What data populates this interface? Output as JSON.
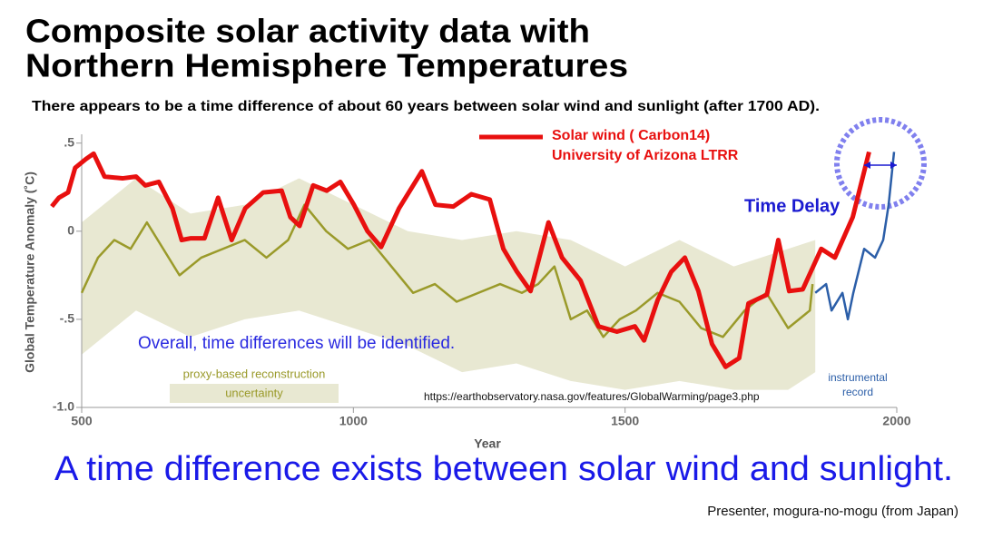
{
  "chart_data": {
    "type": "line",
    "title_lines": [
      "Composite solar activity data with",
      "Northern Hemisphere Temperatures"
    ],
    "subtitle": "There appears to be a time difference of about 60 years between solar wind and sunlight (after 1700 AD).",
    "xlabel": "Year",
    "ylabel": "Global Temperature Anomaly (˚C)",
    "xlim": [
      500,
      2000
    ],
    "xticks": [
      500,
      1000,
      1500,
      2000
    ],
    "ylim": [
      -1.0,
      0.55
    ],
    "yticks": [
      {
        "value": 0.5,
        "label": ".5"
      },
      0,
      {
        "value": -0.5,
        "label": "-.5"
      },
      {
        "value": -1.0,
        "label": "-1.0"
      }
    ],
    "band": {
      "name": "uncertainty",
      "color": "#e8e8d2",
      "x": [
        500,
        600,
        700,
        800,
        900,
        1000,
        1100,
        1200,
        1300,
        1400,
        1500,
        1600,
        1700,
        1800,
        1850
      ],
      "upper": [
        0.05,
        0.3,
        0.1,
        0.15,
        0.3,
        0.15,
        0.0,
        -0.05,
        0.0,
        -0.05,
        -0.2,
        -0.05,
        -0.2,
        -0.1,
        -0.05
      ],
      "lower": [
        -0.7,
        -0.45,
        -0.6,
        -0.5,
        -0.45,
        -0.55,
        -0.65,
        -0.8,
        -0.75,
        -0.85,
        -0.9,
        -0.85,
        -0.9,
        -0.9,
        -0.8
      ]
    },
    "series": [
      {
        "name": "proxy-based reconstruction",
        "color": "#9a9a2a",
        "width": 2.5,
        "x": [
          500,
          530,
          560,
          590,
          620,
          640,
          680,
          720,
          760,
          800,
          840,
          880,
          910,
          950,
          990,
          1030,
          1070,
          1110,
          1150,
          1190,
          1230,
          1270,
          1310,
          1340,
          1370,
          1400,
          1430,
          1460,
          1490,
          1520,
          1560,
          1600,
          1640,
          1680,
          1720,
          1760,
          1800,
          1840,
          1845
        ],
        "values": [
          -0.35,
          -0.15,
          -0.05,
          -0.1,
          0.05,
          -0.05,
          -0.25,
          -0.15,
          -0.1,
          -0.05,
          -0.15,
          -0.05,
          0.15,
          0.0,
          -0.1,
          -0.05,
          -0.2,
          -0.35,
          -0.3,
          -0.4,
          -0.35,
          -0.3,
          -0.35,
          -0.3,
          -0.2,
          -0.5,
          -0.45,
          -0.6,
          -0.5,
          -0.45,
          -0.35,
          -0.4,
          -0.55,
          -0.6,
          -0.45,
          -0.35,
          -0.55,
          -0.45,
          -0.3
        ]
      },
      {
        "name": "instrumental record",
        "color": "#2b5ea8",
        "width": 2.5,
        "x": [
          1850,
          1870,
          1880,
          1900,
          1910,
          1920,
          1940,
          1960,
          1975,
          1985,
          1995
        ],
        "values": [
          -0.35,
          -0.3,
          -0.45,
          -0.35,
          -0.5,
          -0.35,
          -0.1,
          -0.15,
          -0.05,
          0.15,
          0.45
        ]
      },
      {
        "name": "Solar wind ( Carbon14)",
        "source": "University of Arizona LTRR",
        "color": "#e8100f",
        "width": 5,
        "x": [
          445,
          458,
          475,
          488,
          508,
          522,
          542,
          575,
          600,
          617,
          642,
          667,
          684,
          701,
          726,
          751,
          776,
          801,
          834,
          868,
          884,
          901,
          926,
          951,
          976,
          1001,
          1026,
          1051,
          1084,
          1126,
          1151,
          1184,
          1217,
          1251,
          1276,
          1301,
          1326,
          1359,
          1384,
          1418,
          1451,
          1485,
          1518,
          1535,
          1560,
          1585,
          1610,
          1635,
          1660,
          1685,
          1710,
          1727,
          1761,
          1782,
          1802,
          1827,
          1861,
          1886,
          1919,
          1949
        ],
        "values": [
          0.14,
          0.19,
          0.22,
          0.36,
          0.41,
          0.44,
          0.31,
          0.3,
          0.31,
          0.26,
          0.28,
          0.13,
          -0.05,
          -0.04,
          -0.04,
          0.19,
          -0.05,
          0.13,
          0.22,
          0.23,
          0.08,
          0.03,
          0.26,
          0.23,
          0.28,
          0.15,
          0.0,
          -0.09,
          0.13,
          0.34,
          0.15,
          0.14,
          0.21,
          0.18,
          -0.1,
          -0.23,
          -0.34,
          0.05,
          -0.15,
          -0.28,
          -0.54,
          -0.57,
          -0.54,
          -0.62,
          -0.39,
          -0.23,
          -0.15,
          -0.34,
          -0.64,
          -0.77,
          -0.72,
          -0.41,
          -0.36,
          -0.05,
          -0.34,
          -0.33,
          -0.1,
          -0.15,
          0.08,
          0.45
        ]
      }
    ],
    "annotations": {
      "time_delay": "Time Delay",
      "overall": "Overall, time differences will be identified.",
      "url": "https://earthobservatory.nasa.gov/features/GlobalWarming/page3.php"
    },
    "conclusion": "A time difference exists between solar wind and sunlight.",
    "presenter": "Presenter, mogura-no-mogu (from Japan)"
  }
}
